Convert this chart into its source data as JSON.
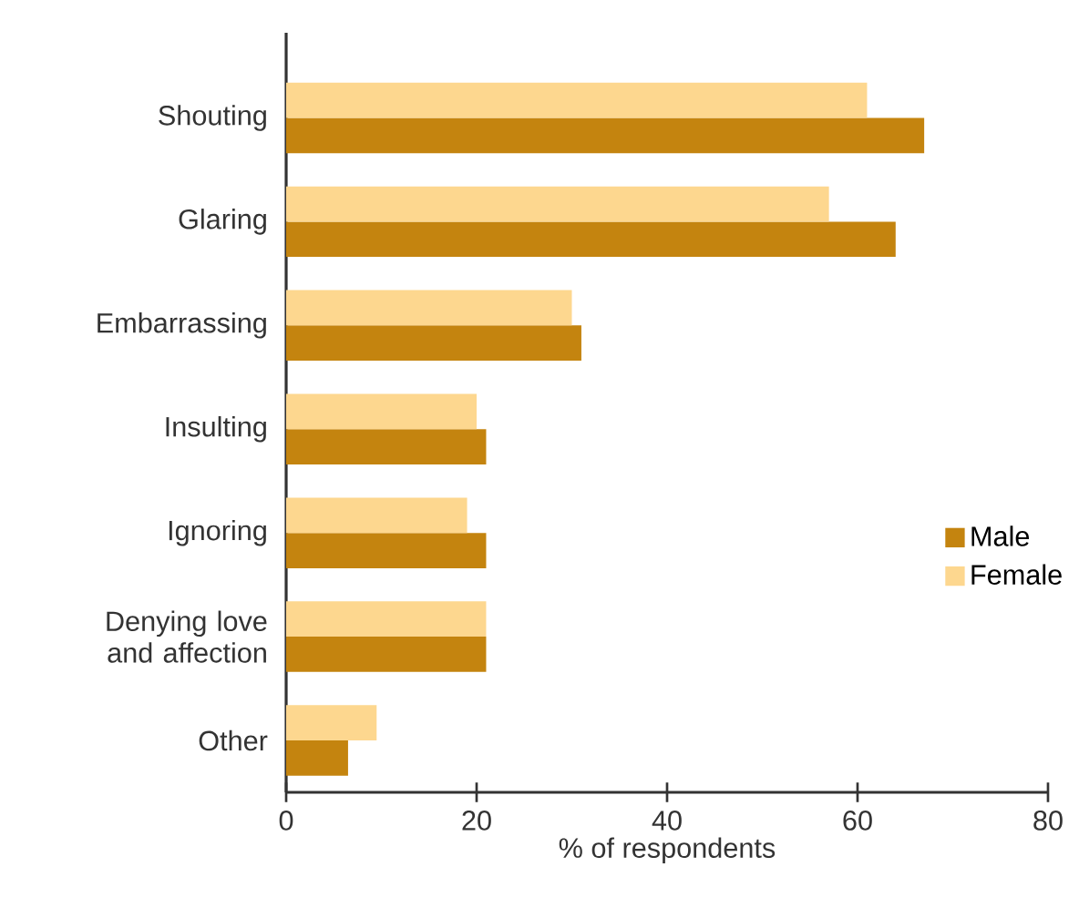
{
  "chart_data": {
    "type": "bar",
    "orientation": "horizontal",
    "xlabel": "% of respondents",
    "categories": [
      "Shouting",
      "Glaring",
      "Embarrassing",
      "Insulting",
      "Ignoring",
      "Denying love and affection",
      "Other"
    ],
    "series": [
      {
        "name": "Male",
        "color": "#c4840f",
        "values": [
          67,
          64,
          31,
          21,
          21,
          21,
          6.5
        ]
      },
      {
        "name": "Female",
        "color": "#fdd78f",
        "values": [
          61,
          57,
          30,
          20,
          19,
          21,
          9.5
        ]
      }
    ],
    "xlim": [
      0,
      80
    ],
    "xticks": [
      0,
      20,
      40,
      60,
      80
    ],
    "legend": "right"
  }
}
